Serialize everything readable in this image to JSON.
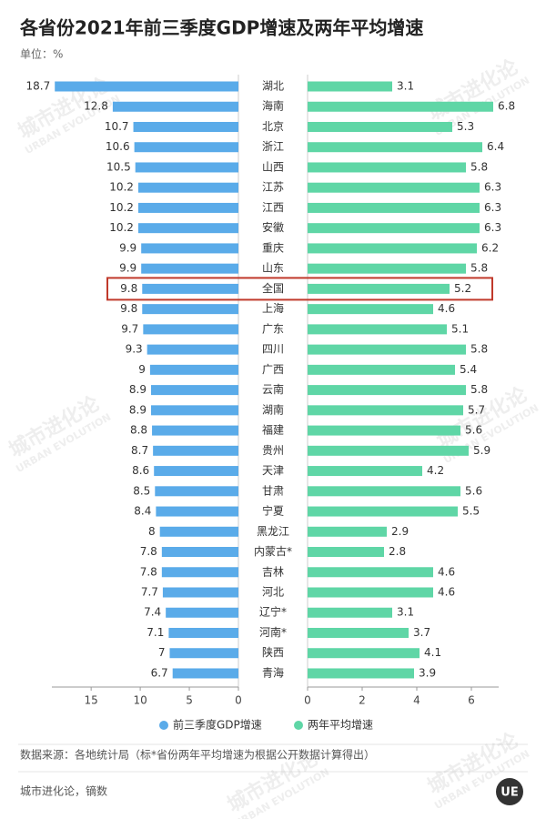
{
  "chart_data": {
    "type": "bar",
    "title": "各省份2021年前三季度GDP增速及两年平均增速",
    "unit": "单位：%",
    "categories": [
      "湖北",
      "海南",
      "北京",
      "浙江",
      "山西",
      "江苏",
      "江西",
      "安徽",
      "重庆",
      "山东",
      "全国",
      "上海",
      "广东",
      "四川",
      "广西",
      "云南",
      "湖南",
      "福建",
      "贵州",
      "天津",
      "甘肃",
      "宁夏",
      "黑龙江",
      "内蒙古*",
      "吉林",
      "河北",
      "辽宁*",
      "河南*",
      "陕西",
      "青海"
    ],
    "highlight_index": 10,
    "series": [
      {
        "name": "前三季度GDP增速",
        "color": "#5aabe9",
        "xlim": [
          0,
          19
        ],
        "xticks": [
          0,
          5,
          10,
          15
        ],
        "values": [
          18.7,
          12.8,
          10.7,
          10.6,
          10.5,
          10.2,
          10.2,
          10.2,
          9.9,
          9.9,
          9.8,
          9.8,
          9.7,
          9.3,
          9,
          8.9,
          8.9,
          8.8,
          8.7,
          8.6,
          8.5,
          8.4,
          8,
          7.8,
          7.8,
          7.7,
          7.4,
          7.1,
          7,
          6.7
        ]
      },
      {
        "name": "两年平均增速",
        "color": "#5fd6a6",
        "xlim": [
          0,
          7
        ],
        "xticks": [
          0,
          2,
          4,
          6
        ],
        "values": [
          3.1,
          6.8,
          5.3,
          6.4,
          5.8,
          6.3,
          6.3,
          6.3,
          6.2,
          5.8,
          5.2,
          4.6,
          5.1,
          5.8,
          5.4,
          5.8,
          5.7,
          5.6,
          5.9,
          4.2,
          5.6,
          5.5,
          2.9,
          2.8,
          4.6,
          4.6,
          3.1,
          3.7,
          4.1,
          3.9
        ]
      }
    ],
    "source": "数据来源：各地统计局（标*省份两年平均增速为根据公开数据计算得出）",
    "credit": "城市进化论，镝数",
    "watermark": "城市进化论",
    "watermark_en": "URBAN EVOLUTION",
    "logo": "UE"
  }
}
